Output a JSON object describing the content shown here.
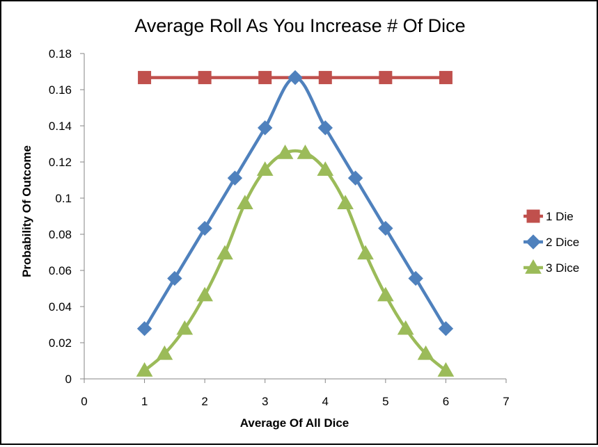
{
  "chart_data": {
    "type": "line",
    "title": "Average Roll As You Increase # Of Dice",
    "xlabel": "Average Of All Dice",
    "ylabel": "Probability Of Outcome",
    "xlim": [
      0,
      7
    ],
    "ylim": [
      0,
      0.18
    ],
    "x_ticks": [
      "0",
      "1",
      "2",
      "3",
      "4",
      "5",
      "6",
      "7"
    ],
    "y_ticks": [
      "0",
      "0.02",
      "0.04",
      "0.06",
      "0.08",
      "0.1",
      "0.12",
      "0.14",
      "0.16",
      "0.18"
    ],
    "grid": false,
    "legend_position": "right",
    "series": [
      {
        "name": "1 Die",
        "color": "#C0504D",
        "marker": "square",
        "x": [
          1,
          2,
          3,
          4,
          5,
          6
        ],
        "y": [
          0.1667,
          0.1667,
          0.1667,
          0.1667,
          0.1667,
          0.1667
        ]
      },
      {
        "name": "2 Dice",
        "color": "#4F81BD",
        "marker": "diamond",
        "x": [
          1,
          1.5,
          2,
          2.5,
          3,
          3.5,
          4,
          4.5,
          5,
          5.5,
          6
        ],
        "y": [
          0.0278,
          0.0556,
          0.0833,
          0.1111,
          0.1389,
          0.1667,
          0.1389,
          0.1111,
          0.0833,
          0.0556,
          0.0278
        ]
      },
      {
        "name": "3 Dice",
        "color": "#9BBB59",
        "marker": "triangle",
        "x": [
          1,
          1.333,
          1.667,
          2,
          2.333,
          2.667,
          3,
          3.333,
          3.667,
          4,
          4.333,
          4.667,
          5,
          5.333,
          5.667,
          6
        ],
        "y": [
          0.0046,
          0.0139,
          0.0278,
          0.0463,
          0.0694,
          0.0972,
          0.1157,
          0.125,
          0.125,
          0.1157,
          0.0972,
          0.0694,
          0.0463,
          0.0278,
          0.0139,
          0.0046
        ]
      }
    ]
  }
}
